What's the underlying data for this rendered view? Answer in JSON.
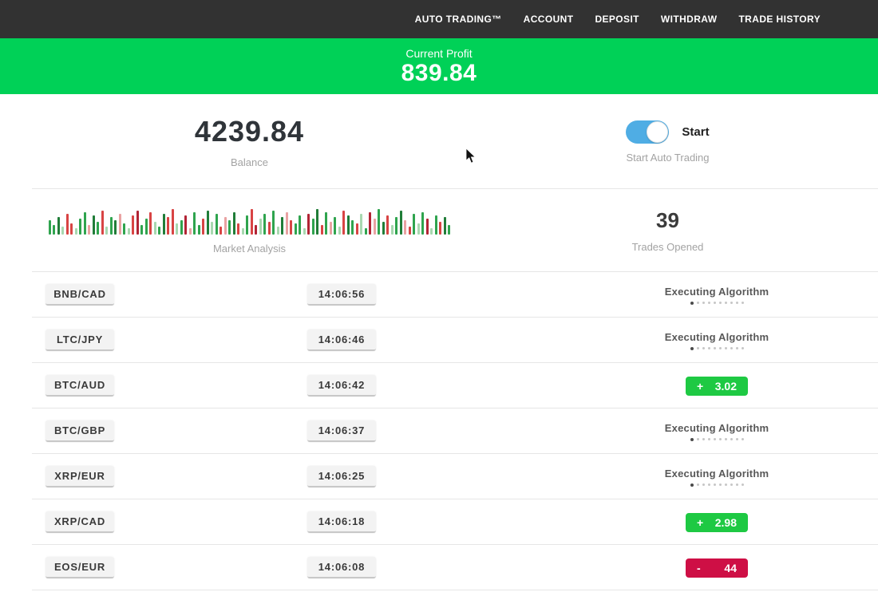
{
  "colors": {
    "navbar-bg": "#323232",
    "banner-bg": "#00d157",
    "accent-green": "#1ec943",
    "accent-red": "#ce0f45",
    "toggle-blue": "#4fade4"
  },
  "navbar": {
    "items": [
      "AUTO TRADING™",
      "ACCOUNT",
      "DEPOSIT",
      "WITHDRAW",
      "TRADE HISTORY"
    ]
  },
  "banner": {
    "label": "Current Profit",
    "value": "839.84"
  },
  "stats": {
    "balance": {
      "value": "4239.84",
      "label": "Balance"
    },
    "auto_trading": {
      "toggle_label": "Start",
      "label": "Start Auto Trading",
      "toggle_on": true
    },
    "market_analysis": {
      "label": "Market Analysis",
      "palette": {
        "g": "#2fa44e",
        "dg": "#207d38",
        "lg": "#a8d8b0",
        "r": "#d84444",
        "dr": "#b22435",
        "lr": "#e9a2a2"
      },
      "bars": [
        [
          18,
          "g"
        ],
        [
          12,
          "g"
        ],
        [
          22,
          "dg"
        ],
        [
          10,
          "lg"
        ],
        [
          26,
          "r"
        ],
        [
          14,
          "r"
        ],
        [
          8,
          "lg"
        ],
        [
          20,
          "g"
        ],
        [
          28,
          "g"
        ],
        [
          12,
          "lr"
        ],
        [
          24,
          "dg"
        ],
        [
          16,
          "g"
        ],
        [
          30,
          "r"
        ],
        [
          10,
          "lg"
        ],
        [
          22,
          "g"
        ],
        [
          18,
          "dg"
        ],
        [
          26,
          "lr"
        ],
        [
          14,
          "g"
        ],
        [
          8,
          "lg"
        ],
        [
          24,
          "r"
        ],
        [
          30,
          "dr"
        ],
        [
          12,
          "g"
        ],
        [
          20,
          "g"
        ],
        [
          28,
          "r"
        ],
        [
          16,
          "lg"
        ],
        [
          10,
          "g"
        ],
        [
          26,
          "dg"
        ],
        [
          22,
          "r"
        ],
        [
          32,
          "r"
        ],
        [
          14,
          "lg"
        ],
        [
          18,
          "g"
        ],
        [
          24,
          "dr"
        ],
        [
          8,
          "lr"
        ],
        [
          28,
          "g"
        ],
        [
          12,
          "g"
        ],
        [
          20,
          "r"
        ],
        [
          30,
          "dg"
        ],
        [
          16,
          "lg"
        ],
        [
          26,
          "g"
        ],
        [
          10,
          "r"
        ],
        [
          22,
          "lr"
        ],
        [
          18,
          "g"
        ],
        [
          28,
          "dg"
        ],
        [
          14,
          "r"
        ],
        [
          8,
          "lg"
        ],
        [
          24,
          "g"
        ],
        [
          32,
          "r"
        ],
        [
          12,
          "dr"
        ],
        [
          20,
          "lg"
        ],
        [
          26,
          "g"
        ],
        [
          16,
          "r"
        ],
        [
          30,
          "g"
        ],
        [
          10,
          "lg"
        ],
        [
          22,
          "dg"
        ],
        [
          28,
          "lr"
        ],
        [
          18,
          "r"
        ],
        [
          14,
          "g"
        ],
        [
          24,
          "g"
        ],
        [
          8,
          "lg"
        ],
        [
          26,
          "dr"
        ],
        [
          20,
          "g"
        ],
        [
          32,
          "dg"
        ],
        [
          12,
          "r"
        ],
        [
          28,
          "g"
        ],
        [
          16,
          "lr"
        ],
        [
          22,
          "g"
        ],
        [
          10,
          "lg"
        ],
        [
          30,
          "r"
        ],
        [
          24,
          "dg"
        ],
        [
          18,
          "g"
        ],
        [
          14,
          "r"
        ],
        [
          26,
          "lg"
        ],
        [
          8,
          "g"
        ],
        [
          28,
          "dr"
        ],
        [
          20,
          "lr"
        ],
        [
          32,
          "g"
        ],
        [
          16,
          "dg"
        ],
        [
          24,
          "r"
        ],
        [
          12,
          "lg"
        ],
        [
          22,
          "g"
        ],
        [
          30,
          "dg"
        ],
        [
          18,
          "lr"
        ],
        [
          10,
          "r"
        ],
        [
          26,
          "g"
        ],
        [
          14,
          "lg"
        ],
        [
          28,
          "g"
        ],
        [
          20,
          "dr"
        ],
        [
          8,
          "lg"
        ],
        [
          24,
          "g"
        ],
        [
          16,
          "r"
        ],
        [
          22,
          "dg"
        ],
        [
          12,
          "g"
        ]
      ]
    },
    "trades_opened": {
      "value": "39",
      "label": "Trades Opened"
    }
  },
  "trades": {
    "dots_count": 10,
    "rows": [
      {
        "pair": "BNB/CAD",
        "time": "14:06:56",
        "status": {
          "type": "executing",
          "text": "Executing Algorithm"
        }
      },
      {
        "pair": "LTC/JPY",
        "time": "14:06:46",
        "status": {
          "type": "executing",
          "text": "Executing Algorithm"
        }
      },
      {
        "pair": "BTC/AUD",
        "time": "14:06:42",
        "status": {
          "type": "profit",
          "sign": "+",
          "value": "3.02"
        }
      },
      {
        "pair": "BTC/GBP",
        "time": "14:06:37",
        "status": {
          "type": "executing",
          "text": "Executing Algorithm"
        }
      },
      {
        "pair": "XRP/EUR",
        "time": "14:06:25",
        "status": {
          "type": "executing",
          "text": "Executing Algorithm"
        }
      },
      {
        "pair": "XRP/CAD",
        "time": "14:06:18",
        "status": {
          "type": "profit",
          "sign": "+",
          "value": "2.98"
        }
      },
      {
        "pair": "EOS/EUR",
        "time": "14:06:08",
        "status": {
          "type": "loss",
          "sign": "-",
          "value": "44"
        }
      }
    ]
  }
}
